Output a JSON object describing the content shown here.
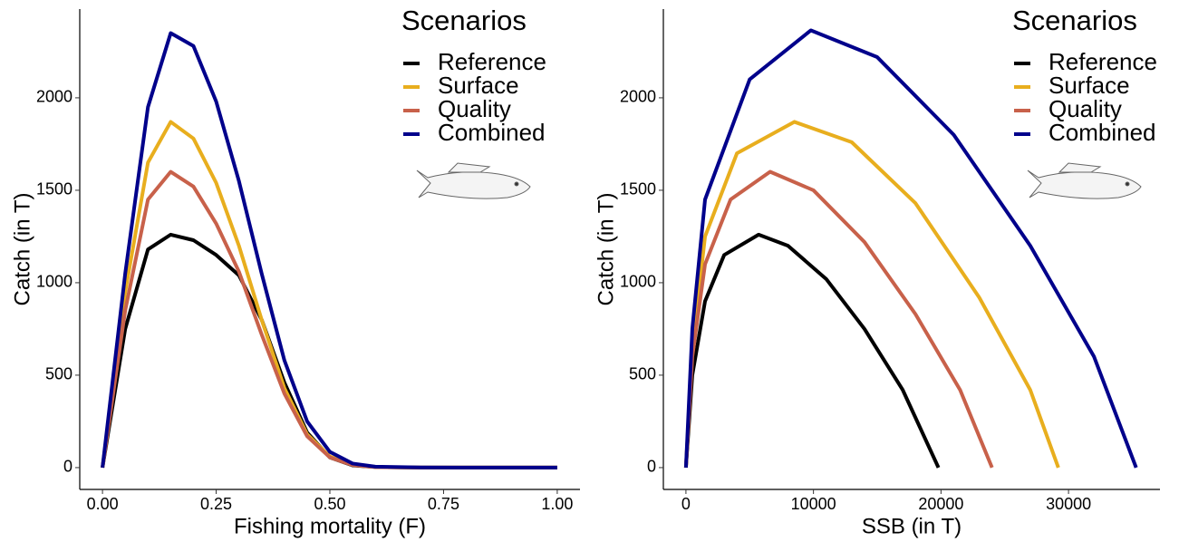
{
  "chart_data": [
    {
      "type": "line",
      "xlabel": "Fishing mortality (F)",
      "ylabel": "Catch (in T)",
      "legend_title": "Scenarios",
      "legend": "top-right",
      "x": [
        0,
        0.05,
        0.1,
        0.15,
        0.2,
        0.25,
        0.3,
        0.35,
        0.4,
        0.45,
        0.5,
        0.55,
        0.6,
        0.7,
        0.8,
        0.9,
        1.0
      ],
      "series": [
        {
          "name": "Reference",
          "color": "#000000",
          "values": [
            0,
            750,
            1180,
            1260,
            1230,
            1150,
            1040,
            800,
            460,
            190,
            55,
            12,
            3,
            0,
            0,
            0,
            0
          ]
        },
        {
          "name": "Surface",
          "color": "#E8AE1E",
          "values": [
            0,
            950,
            1650,
            1870,
            1780,
            1540,
            1200,
            800,
            430,
            180,
            60,
            15,
            3,
            0,
            0,
            0,
            0
          ]
        },
        {
          "name": "Quality",
          "color": "#C8614A",
          "values": [
            0,
            850,
            1450,
            1600,
            1520,
            1320,
            1060,
            720,
            400,
            170,
            55,
            14,
            3,
            0,
            0,
            0,
            0
          ]
        },
        {
          "name": "Combined",
          "color": "#00008B",
          "values": [
            0,
            1050,
            1950,
            2350,
            2280,
            1980,
            1550,
            1050,
            580,
            250,
            85,
            22,
            5,
            1,
            0,
            0,
            0
          ]
        }
      ],
      "xlim": [
        -0.05,
        1.05
      ],
      "xticks": [
        {
          "value": 0,
          "label": "0.00"
        },
        {
          "value": 0.25,
          "label": "0.25"
        },
        {
          "value": 0.5,
          "label": "0.50"
        },
        {
          "value": 0.75,
          "label": "0.75"
        },
        {
          "value": 1,
          "label": "1.00"
        }
      ],
      "ylim": [
        -118,
        2480
      ],
      "yticks": [
        0,
        500,
        1000,
        1500,
        2000
      ]
    },
    {
      "type": "line",
      "xlabel": "SSB (in T)",
      "ylabel": "Catch (in T)",
      "legend_title": "Scenarios",
      "legend": "top-right",
      "series": [
        {
          "name": "Reference",
          "color": "#000000",
          "x": [
            0,
            500,
            1500,
            3000,
            5700,
            8000,
            11000,
            14000,
            17000,
            19800
          ],
          "values": [
            0,
            500,
            900,
            1150,
            1260,
            1200,
            1020,
            750,
            420,
            0
          ]
        },
        {
          "name": "Surface",
          "color": "#E8AE1E",
          "x": [
            0,
            500,
            1500,
            4000,
            8500,
            13000,
            18000,
            23000,
            27000,
            29200
          ],
          "values": [
            0,
            650,
            1250,
            1700,
            1870,
            1760,
            1430,
            920,
            420,
            0
          ]
        },
        {
          "name": "Quality",
          "color": "#C8614A",
          "x": [
            0,
            500,
            1500,
            3500,
            6600,
            10000,
            14000,
            18000,
            21500,
            24000
          ],
          "values": [
            0,
            600,
            1100,
            1450,
            1600,
            1500,
            1220,
            830,
            420,
            0
          ]
        },
        {
          "name": "Combined",
          "color": "#00008B",
          "x": [
            0,
            500,
            1500,
            5000,
            9800,
            15000,
            21000,
            27000,
            32000,
            35300
          ],
          "values": [
            0,
            750,
            1450,
            2100,
            2365,
            2220,
            1800,
            1200,
            600,
            0
          ]
        }
      ],
      "xlim": [
        -1770,
        37170
      ],
      "xticks": [
        0,
        10000,
        20000,
        30000
      ],
      "ylim": [
        -118,
        2480
      ],
      "yticks": [
        0,
        500,
        1000,
        1500,
        2000
      ]
    }
  ]
}
